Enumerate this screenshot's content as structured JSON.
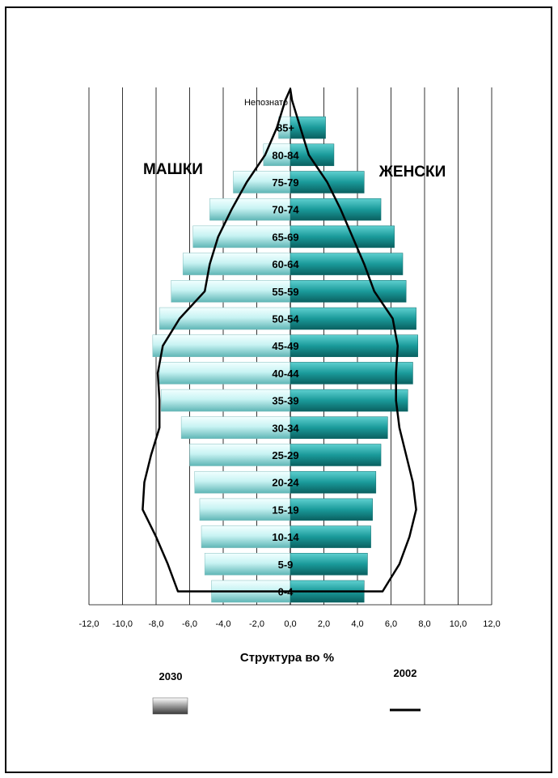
{
  "chart_data": {
    "type": "bar",
    "orientation": "horizontal",
    "style": "population-pyramid",
    "categories": [
      "0-4",
      "5-9",
      "10-14",
      "15-19",
      "20-24",
      "25-29",
      "30-34",
      "35-39",
      "40-44",
      "45-49",
      "50-54",
      "55-59",
      "60-64",
      "65-69",
      "70-74",
      "75-79",
      "80-84",
      "85+",
      "Непознато"
    ],
    "series": [
      {
        "name": "2030",
        "side": "МАШКИ",
        "kind": "bars",
        "values": [
          -4.7,
          -5.1,
          -5.3,
          -5.4,
          -5.7,
          -6.0,
          -6.5,
          -7.7,
          -7.8,
          -8.2,
          -7.8,
          -7.1,
          -6.4,
          -5.8,
          -4.8,
          -3.4,
          -1.6,
          -0.7,
          0
        ]
      },
      {
        "name": "2030",
        "side": "ЖЕНСКИ",
        "kind": "bars",
        "values": [
          4.4,
          4.6,
          4.8,
          4.9,
          5.1,
          5.4,
          5.8,
          7.0,
          7.3,
          7.6,
          7.5,
          6.9,
          6.7,
          6.2,
          5.4,
          4.4,
          2.6,
          2.1,
          0
        ]
      },
      {
        "name": "2002",
        "side": "МАШКИ",
        "kind": "line",
        "values": [
          -6.7,
          -7.3,
          -8.0,
          -8.8,
          -8.7,
          -8.3,
          -7.8,
          -7.8,
          -7.9,
          -7.6,
          -6.6,
          -5.1,
          -4.8,
          -4.3,
          -3.5,
          -2.6,
          -1.5,
          -0.8,
          -0.3
        ]
      },
      {
        "name": "2002",
        "side": "ЖЕНСКИ",
        "kind": "line",
        "values": [
          5.5,
          6.5,
          7.1,
          7.5,
          7.3,
          6.9,
          6.5,
          6.3,
          6.3,
          6.4,
          6.1,
          5.0,
          4.4,
          3.7,
          3.0,
          2.2,
          1.1,
          0.6,
          0.1
        ]
      }
    ],
    "labels": {
      "left": "МАШКИ",
      "right": "ЖЕНСКИ",
      "xlabel": "Структура во %",
      "legend_bars": "2030",
      "legend_line": "2002"
    },
    "xticks": [
      "-12,0",
      "-10,0",
      "-8,0",
      "-6,0",
      "-4,0",
      "-2,0",
      "0,0",
      "2,0",
      "4,0",
      "6,0",
      "8,0",
      "10,0",
      "12,0"
    ],
    "xlim": [
      -12,
      12
    ],
    "grid": "vertical",
    "legend_placement": "bottom",
    "colors": {
      "male_bar": "#c8f3f3",
      "female_bar": "#1a9a9a",
      "line": "#000000",
      "grid": "#000000"
    }
  }
}
